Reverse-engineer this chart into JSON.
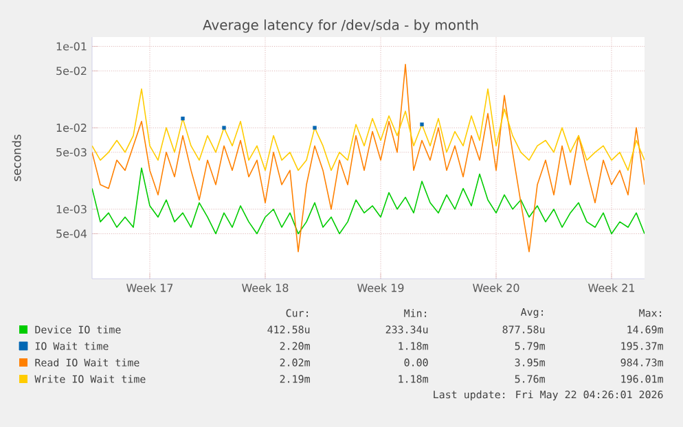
{
  "chart_data": {
    "type": "line",
    "title": "Average latency for /dev/sda - by month",
    "ylabel": "seconds",
    "log": "y",
    "grid": true,
    "legend": "bottom",
    "ylim": [
      0.00014,
      0.13
    ],
    "yticks": [
      {
        "value": 0.1,
        "label": "1e-01"
      },
      {
        "value": 0.05,
        "label": "5e-02"
      },
      {
        "value": 0.01,
        "label": "1e-02"
      },
      {
        "value": 0.005,
        "label": "5e-03"
      },
      {
        "value": 0.001,
        "label": "1e-03"
      },
      {
        "value": 0.0005,
        "label": "5e-04"
      }
    ],
    "categories": [
      null,
      null,
      null,
      null,
      null,
      null,
      null,
      "Week 17",
      null,
      null,
      null,
      null,
      null,
      null,
      null,
      null,
      null,
      null,
      null,
      null,
      null,
      "Week 18",
      null,
      null,
      null,
      null,
      null,
      null,
      null,
      null,
      null,
      null,
      null,
      null,
      null,
      "Week 19",
      null,
      null,
      null,
      null,
      null,
      null,
      null,
      null,
      null,
      null,
      null,
      null,
      null,
      "Week 20",
      null,
      null,
      null,
      null,
      null,
      null,
      null,
      null,
      null,
      null,
      null,
      null,
      null,
      "Week 21",
      null,
      null,
      null,
      null
    ],
    "series": [
      {
        "name": "Device IO time",
        "color": "#00cc00",
        "values": [
          0.0018,
          0.0007,
          0.0009,
          0.0006,
          0.0008,
          0.0006,
          0.0032,
          0.0011,
          0.0008,
          0.0013,
          0.0007,
          0.0009,
          0.0006,
          0.0012,
          0.0008,
          0.0005,
          0.0009,
          0.0006,
          0.0011,
          0.0007,
          0.0005,
          0.0008,
          0.001,
          0.0006,
          0.0009,
          0.0005,
          0.0007,
          0.0012,
          0.0006,
          0.0008,
          0.0005,
          0.0007,
          0.0013,
          0.0009,
          0.0011,
          0.0008,
          0.0016,
          0.001,
          0.0014,
          0.0009,
          0.0022,
          0.0012,
          0.0009,
          0.0015,
          0.001,
          0.0018,
          0.0011,
          0.0027,
          0.0013,
          0.0009,
          0.0015,
          0.001,
          0.0013,
          0.0008,
          0.0011,
          0.0007,
          0.001,
          0.0006,
          0.0009,
          0.0012,
          0.0007,
          0.0006,
          0.0009,
          0.0005,
          0.0007,
          0.0006,
          0.0009,
          0.0005
        ]
      },
      {
        "name": "IO Wait time",
        "color": "#0066b3",
        "type": "scatter",
        "marker": "square",
        "values": [
          null,
          null,
          null,
          null,
          null,
          null,
          null,
          null,
          null,
          null,
          null,
          0.013,
          null,
          null,
          null,
          null,
          0.01,
          null,
          null,
          null,
          null,
          null,
          null,
          null,
          null,
          null,
          null,
          0.01,
          null,
          null,
          null,
          null,
          null,
          null,
          null,
          null,
          null,
          null,
          null,
          null,
          0.011,
          null,
          null,
          null,
          null,
          null,
          null,
          null,
          null,
          null,
          null,
          null,
          null,
          null,
          null,
          null,
          null,
          null,
          null,
          null,
          null,
          null,
          null,
          null,
          null,
          null,
          null,
          null
        ]
      },
      {
        "name": "Read IO Wait time",
        "color": "#ff8000",
        "values": [
          0.005,
          0.002,
          0.0018,
          0.004,
          0.003,
          0.006,
          0.012,
          0.003,
          0.0015,
          0.005,
          0.0025,
          0.008,
          0.003,
          0.0013,
          0.004,
          0.002,
          0.006,
          0.003,
          0.007,
          0.0025,
          0.004,
          0.0012,
          0.005,
          0.002,
          0.003,
          0.0003,
          0.002,
          0.006,
          0.003,
          0.001,
          0.004,
          0.002,
          0.008,
          0.003,
          0.009,
          0.004,
          0.012,
          0.005,
          0.06,
          0.003,
          0.007,
          0.004,
          0.01,
          0.003,
          0.006,
          0.0025,
          0.008,
          0.004,
          0.015,
          0.003,
          0.025,
          0.005,
          0.0012,
          0.0003,
          0.002,
          0.004,
          0.0015,
          0.006,
          0.002,
          0.008,
          0.003,
          0.0012,
          0.004,
          0.002,
          0.003,
          0.0015,
          0.01,
          0.002
        ]
      },
      {
        "name": "Write IO Wait time",
        "color": "#ffcc00",
        "values": [
          0.006,
          0.004,
          0.005,
          0.007,
          0.005,
          0.008,
          0.03,
          0.006,
          0.004,
          0.01,
          0.005,
          0.013,
          0.006,
          0.004,
          0.008,
          0.005,
          0.01,
          0.006,
          0.012,
          0.004,
          0.006,
          0.003,
          0.008,
          0.004,
          0.005,
          0.003,
          0.004,
          0.01,
          0.006,
          0.003,
          0.005,
          0.004,
          0.011,
          0.006,
          0.013,
          0.007,
          0.014,
          0.008,
          0.016,
          0.006,
          0.011,
          0.006,
          0.013,
          0.005,
          0.009,
          0.006,
          0.014,
          0.007,
          0.03,
          0.006,
          0.017,
          0.008,
          0.005,
          0.004,
          0.006,
          0.007,
          0.005,
          0.01,
          0.005,
          0.008,
          0.004,
          0.005,
          0.006,
          0.004,
          0.005,
          0.003,
          0.007,
          0.004
        ]
      }
    ],
    "annotations": [
      "Cur:",
      "Min:",
      "Avg:",
      "Max:",
      "412.58u",
      "233.34u",
      "877.58u",
      "14.69m",
      "2.20m",
      "1.18m",
      "5.79m",
      "195.37m",
      "2.02m",
      "0.00",
      "3.95m",
      "984.73m",
      "2.19m",
      "1.18m",
      "5.76m",
      "196.01m",
      "Last update: Fri May 22 04:26:01 2026"
    ]
  }
}
